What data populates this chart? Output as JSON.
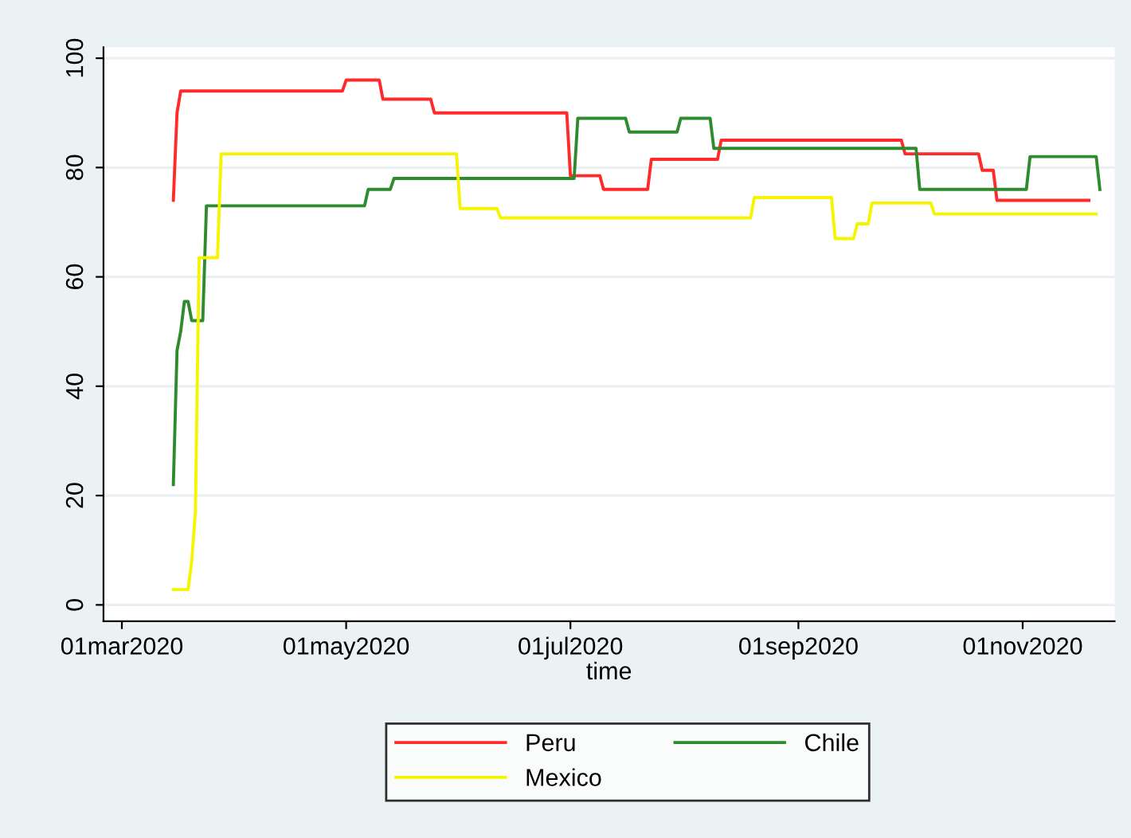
{
  "chart_data": {
    "type": "line",
    "xlabel": "time",
    "xlim": [
      "2020-02-25",
      "2020-11-26"
    ],
    "xticks": [
      {
        "value": "2020-03-01",
        "label": "01mar2020"
      },
      {
        "value": "2020-05-01",
        "label": "01may2020"
      },
      {
        "value": "2020-07-01",
        "label": "01jul2020"
      },
      {
        "value": "2020-09-01",
        "label": "01sep2020"
      },
      {
        "value": "2020-11-01",
        "label": "01nov2020"
      }
    ],
    "ylim": [
      -3,
      102
    ],
    "yticks": [
      0,
      20,
      40,
      60,
      80,
      100
    ],
    "grid": "y",
    "legend": "bottom",
    "marker": "none",
    "line_style": "solid",
    "series": [
      {
        "name": "Peru",
        "color": "#ff2a2a",
        "x": [
          "2020-03-15",
          "2020-03-16",
          "2020-03-17",
          "2020-04-30",
          "2020-05-01",
          "2020-05-10",
          "2020-05-11",
          "2020-05-24",
          "2020-05-25",
          "2020-06-30",
          "2020-07-01",
          "2020-07-09",
          "2020-07-10",
          "2020-07-22",
          "2020-07-23",
          "2020-08-10",
          "2020-08-11",
          "2020-09-29",
          "2020-09-30",
          "2020-10-20",
          "2020-10-21",
          "2020-10-24",
          "2020-10-25",
          "2020-11-19"
        ],
        "values": [
          74,
          90,
          94,
          94,
          96,
          96,
          92.5,
          92.5,
          90,
          90,
          78.5,
          78.5,
          76,
          76,
          81.5,
          81.5,
          85,
          85,
          82.5,
          82.5,
          79.5,
          79.5,
          74,
          74
        ]
      },
      {
        "name": "Chile",
        "color": "#2e8b2e",
        "x": [
          "2020-03-15",
          "2020-03-16",
          "2020-03-17",
          "2020-03-18",
          "2020-03-19",
          "2020-03-20",
          "2020-03-23",
          "2020-03-24",
          "2020-05-06",
          "2020-05-07",
          "2020-05-13",
          "2020-05-14",
          "2020-07-02",
          "2020-07-03",
          "2020-07-16",
          "2020-07-17",
          "2020-07-30",
          "2020-07-31",
          "2020-08-08",
          "2020-08-09",
          "2020-10-03",
          "2020-10-04",
          "2020-11-02",
          "2020-11-03",
          "2020-11-21",
          "2020-11-22"
        ],
        "values": [
          22,
          46.5,
          50,
          55.5,
          55.5,
          52,
          52,
          73,
          73,
          76,
          76,
          78,
          78,
          89,
          89,
          86.5,
          86.5,
          89,
          89,
          83.5,
          83.5,
          76,
          76,
          82,
          82,
          76
        ]
      },
      {
        "name": "Mexico",
        "color": "#f5f500",
        "x": [
          "2020-03-15",
          "2020-03-19",
          "2020-03-20",
          "2020-03-21",
          "2020-03-22",
          "2020-03-27",
          "2020-03-28",
          "2020-05-31",
          "2020-06-01",
          "2020-06-11",
          "2020-06-12",
          "2020-08-19",
          "2020-08-20",
          "2020-09-10",
          "2020-09-11",
          "2020-09-16",
          "2020-09-17",
          "2020-09-20",
          "2020-09-21",
          "2020-10-07",
          "2020-10-08",
          "2020-11-21"
        ],
        "values": [
          2.8,
          2.8,
          8,
          17,
          63.5,
          63.5,
          82.5,
          82.5,
          72.5,
          72.5,
          70.8,
          70.8,
          74.5,
          74.5,
          67,
          67,
          69.7,
          69.7,
          73.5,
          73.5,
          71.5,
          71.5
        ]
      }
    ]
  }
}
